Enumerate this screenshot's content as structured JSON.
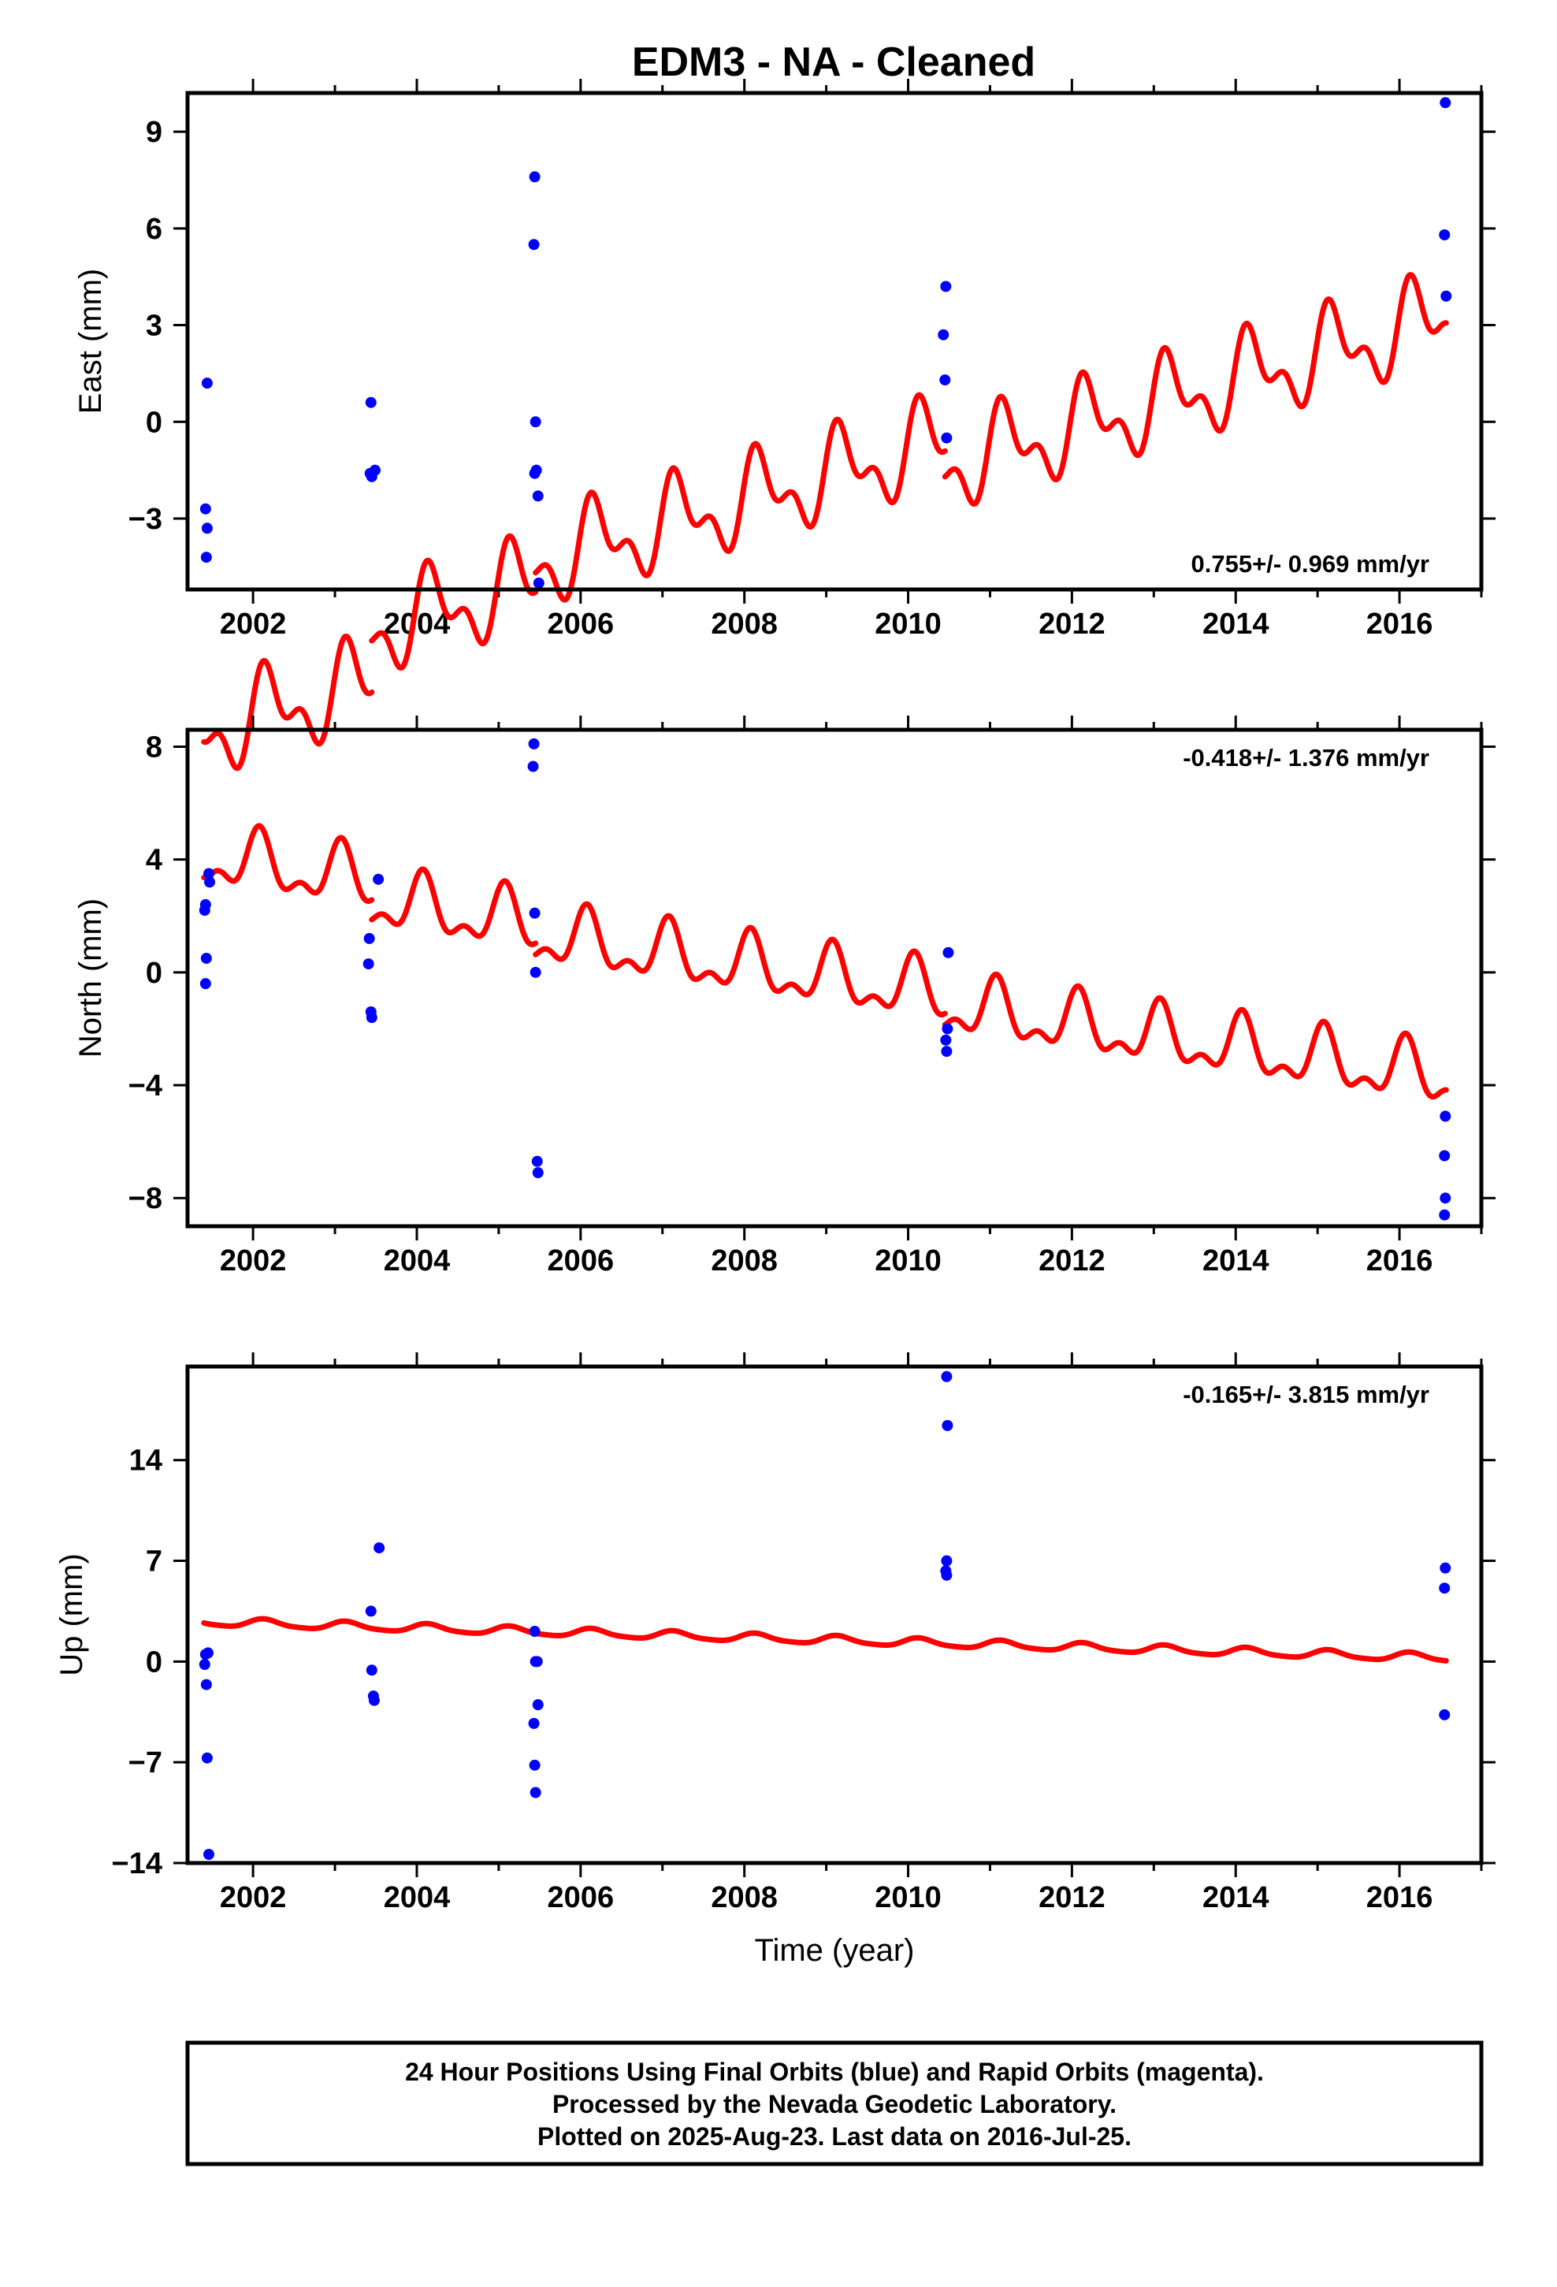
{
  "title": "EDM3  - NA - Cleaned",
  "colors": {
    "final_orbits": "#0000ff",
    "model": "#ff0000",
    "frame": "#000000"
  },
  "footer": {
    "lines": [
      "24 Hour Positions Using Final Orbits (blue) and Rapid Orbits (magenta).",
      "Processed by the Nevada Geodetic Laboratory.",
      "Plotted on 2025-Aug-23. Last data on 2016-Jul-25."
    ]
  },
  "chart_data": [
    {
      "type": "scatter",
      "ylabel": "East (mm)",
      "xlabel": "",
      "xlim": [
        2001.2,
        2017.0
      ],
      "ylim": [
        -5.2,
        10.2
      ],
      "xticks": [
        2002,
        2004,
        2006,
        2008,
        2010,
        2012,
        2014,
        2016
      ],
      "yticks": [
        -3,
        0,
        3,
        6,
        9
      ],
      "rate_label": "0.755+/- 0.969 mm/yr",
      "rate_position": "bottom-right",
      "points": [
        [
          2001.44,
          1.2
        ],
        [
          2001.42,
          -2.7
        ],
        [
          2001.43,
          -4.2
        ],
        [
          2001.44,
          -3.3
        ],
        [
          2003.44,
          0.6
        ],
        [
          2003.43,
          -1.6
        ],
        [
          2003.45,
          -1.7
        ],
        [
          2003.49,
          -1.5
        ],
        [
          2005.44,
          7.6
        ],
        [
          2005.43,
          5.5
        ],
        [
          2005.45,
          0.0
        ],
        [
          2005.46,
          -1.5
        ],
        [
          2005.44,
          -1.6
        ],
        [
          2005.48,
          -2.3
        ],
        [
          2005.49,
          -5.0
        ],
        [
          2010.46,
          4.2
        ],
        [
          2010.43,
          2.7
        ],
        [
          2010.45,
          1.3
        ],
        [
          2010.47,
          -0.5
        ],
        [
          2016.56,
          9.9
        ],
        [
          2016.55,
          5.8
        ],
        [
          2016.57,
          3.9
        ]
      ],
      "model": {
        "start": 2001.4,
        "end": 2016.57,
        "breaks": [
          2003.45,
          2005.45,
          2010.45
        ],
        "segments": [
          {
            "offset": -3.9,
            "slope": 0.755
          },
          {
            "offset": -2.3,
            "slope": 0.755
          },
          {
            "offset": -1.7,
            "slope": 0.755
          },
          {
            "offset": -2.5,
            "slope": 0.755
          }
        ],
        "annual_amplitude": 1.1,
        "annual_phase": 0.35,
        "semiannual_amplitude": 0.7,
        "semiannual_phase": 0.25
      }
    },
    {
      "type": "scatter",
      "ylabel": "North (mm)",
      "xlabel": "",
      "xlim": [
        2001.2,
        2017.0
      ],
      "ylim": [
        -9.0,
        8.6
      ],
      "xticks": [
        2002,
        2004,
        2006,
        2008,
        2010,
        2012,
        2014,
        2016
      ],
      "yticks": [
        -8,
        -4,
        0,
        4,
        8
      ],
      "rate_label": "-0.418+/- 1.376 mm/yr",
      "rate_position": "top-right",
      "points": [
        [
          2001.42,
          2.4
        ],
        [
          2001.41,
          2.2
        ],
        [
          2001.46,
          3.5
        ],
        [
          2001.47,
          3.2
        ],
        [
          2001.43,
          0.5
        ],
        [
          2001.42,
          -0.4
        ],
        [
          2003.53,
          3.3
        ],
        [
          2003.42,
          1.2
        ],
        [
          2003.41,
          0.3
        ],
        [
          2003.44,
          -1.4
        ],
        [
          2003.45,
          -1.6
        ],
        [
          2005.43,
          8.1
        ],
        [
          2005.42,
          7.3
        ],
        [
          2005.44,
          2.1
        ],
        [
          2005.45,
          0.0
        ],
        [
          2005.47,
          -6.7
        ],
        [
          2005.48,
          -7.1
        ],
        [
          2010.49,
          0.7
        ],
        [
          2010.48,
          -2.0
        ],
        [
          2010.46,
          -2.4
        ],
        [
          2010.47,
          -2.8
        ],
        [
          2016.56,
          -5.1
        ],
        [
          2016.55,
          -6.5
        ],
        [
          2016.56,
          -8.0
        ],
        [
          2016.55,
          -8.6
        ]
      ],
      "model": {
        "start": 2001.4,
        "end": 2016.57,
        "breaks": [
          2003.45,
          2005.45,
          2010.45
        ],
        "segments": [
          {
            "offset": 0.9,
            "slope": -0.418
          },
          {
            "offset": 0.2,
            "slope": -0.418
          },
          {
            "offset": -0.2,
            "slope": -0.418
          },
          {
            "offset": -0.6,
            "slope": -0.418
          }
        ],
        "annual_amplitude": 0.9,
        "annual_phase": 1.1,
        "semiannual_amplitude": 0.5,
        "semiannual_phase": 0.6
      }
    },
    {
      "type": "scatter",
      "ylabel": "Up (mm)",
      "xlabel": "Time (year)",
      "xlim": [
        2001.2,
        2017.0
      ],
      "ylim": [
        -14.0,
        20.5
      ],
      "xticks": [
        2002,
        2004,
        2006,
        2008,
        2010,
        2012,
        2014,
        2016
      ],
      "yticks": [
        -14,
        -7,
        0,
        7,
        14
      ],
      "rate_label": "-0.165+/- 3.815 mm/yr",
      "rate_position": "top-right",
      "points": [
        [
          2001.45,
          0.6
        ],
        [
          2001.42,
          0.5
        ],
        [
          2001.41,
          -0.2
        ],
        [
          2001.43,
          -1.6
        ],
        [
          2001.44,
          -6.7
        ],
        [
          2001.46,
          -13.4
        ],
        [
          2003.54,
          7.9
        ],
        [
          2003.44,
          3.5
        ],
        [
          2003.45,
          -0.6
        ],
        [
          2003.47,
          -2.4
        ],
        [
          2003.48,
          -2.7
        ],
        [
          2005.44,
          2.1
        ],
        [
          2005.45,
          0.0
        ],
        [
          2005.47,
          0.0
        ],
        [
          2005.48,
          -3.0
        ],
        [
          2005.43,
          -4.3
        ],
        [
          2005.44,
          -7.2
        ],
        [
          2005.45,
          -9.1
        ],
        [
          2010.47,
          19.8
        ],
        [
          2010.48,
          16.4
        ],
        [
          2010.47,
          7.0
        ],
        [
          2010.46,
          6.3
        ],
        [
          2010.47,
          6.0
        ],
        [
          2016.56,
          6.5
        ],
        [
          2016.55,
          5.1
        ],
        [
          2016.55,
          -3.7
        ]
      ],
      "model": {
        "start": 2001.4,
        "end": 2016.57,
        "breaks": [],
        "segments": [
          {
            "offset": 1.5,
            "slope": -0.165
          }
        ],
        "annual_amplitude": 0.28,
        "annual_phase": 0.7,
        "semiannual_amplitude": 0.06,
        "semiannual_phase": 0.3
      }
    }
  ]
}
